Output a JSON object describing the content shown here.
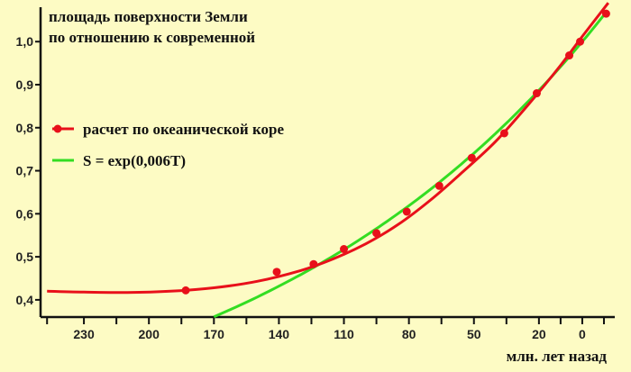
{
  "chart_data": {
    "type": "line",
    "title": [
      "площадь поверхности Земли",
      "по отношению к современной"
    ],
    "xlabel": "млн. лет назад",
    "ylabel": "",
    "x_reversed": true,
    "xlim": [
      250,
      -15
    ],
    "ylim": [
      0.36,
      1.08
    ],
    "x_ticks": [
      230,
      200,
      170,
      140,
      110,
      80,
      50,
      20,
      0
    ],
    "y_ticks": [
      "0,4",
      "0,5",
      "0,6",
      "0,7",
      "0,8",
      "0,9",
      "1,0"
    ],
    "y_tick_values": [
      0.4,
      0.5,
      0.6,
      0.7,
      0.8,
      0.9,
      1.0
    ],
    "legend_position": "left-middle",
    "series": [
      {
        "name": "расчет по океанической коре",
        "color": "#e8101a",
        "marker": "circle",
        "points_x": [
          183,
          141,
          124,
          110,
          95,
          81,
          66,
          51,
          36,
          21,
          6,
          1,
          -11
        ],
        "points_y": [
          0.422,
          0.465,
          0.483,
          0.518,
          0.555,
          0.605,
          0.665,
          0.73,
          0.787,
          0.88,
          0.968,
          1.0,
          1.065
        ],
        "curve_x": [
          247,
          230,
          210,
          190,
          170,
          150,
          130,
          115,
          100,
          85,
          70,
          55,
          40,
          25,
          10,
          0,
          -12
        ],
        "curve_y": [
          0.42,
          0.418,
          0.417,
          0.42,
          0.428,
          0.443,
          0.468,
          0.495,
          0.53,
          0.575,
          0.632,
          0.698,
          0.768,
          0.853,
          0.945,
          1.012,
          1.09
        ]
      },
      {
        "name": "S = exp(0,006T)",
        "color": "#33dd22",
        "marker": "none",
        "fn_base": "exp",
        "coefficient": 0.006,
        "x_start": 170,
        "x_end": -10
      }
    ]
  }
}
